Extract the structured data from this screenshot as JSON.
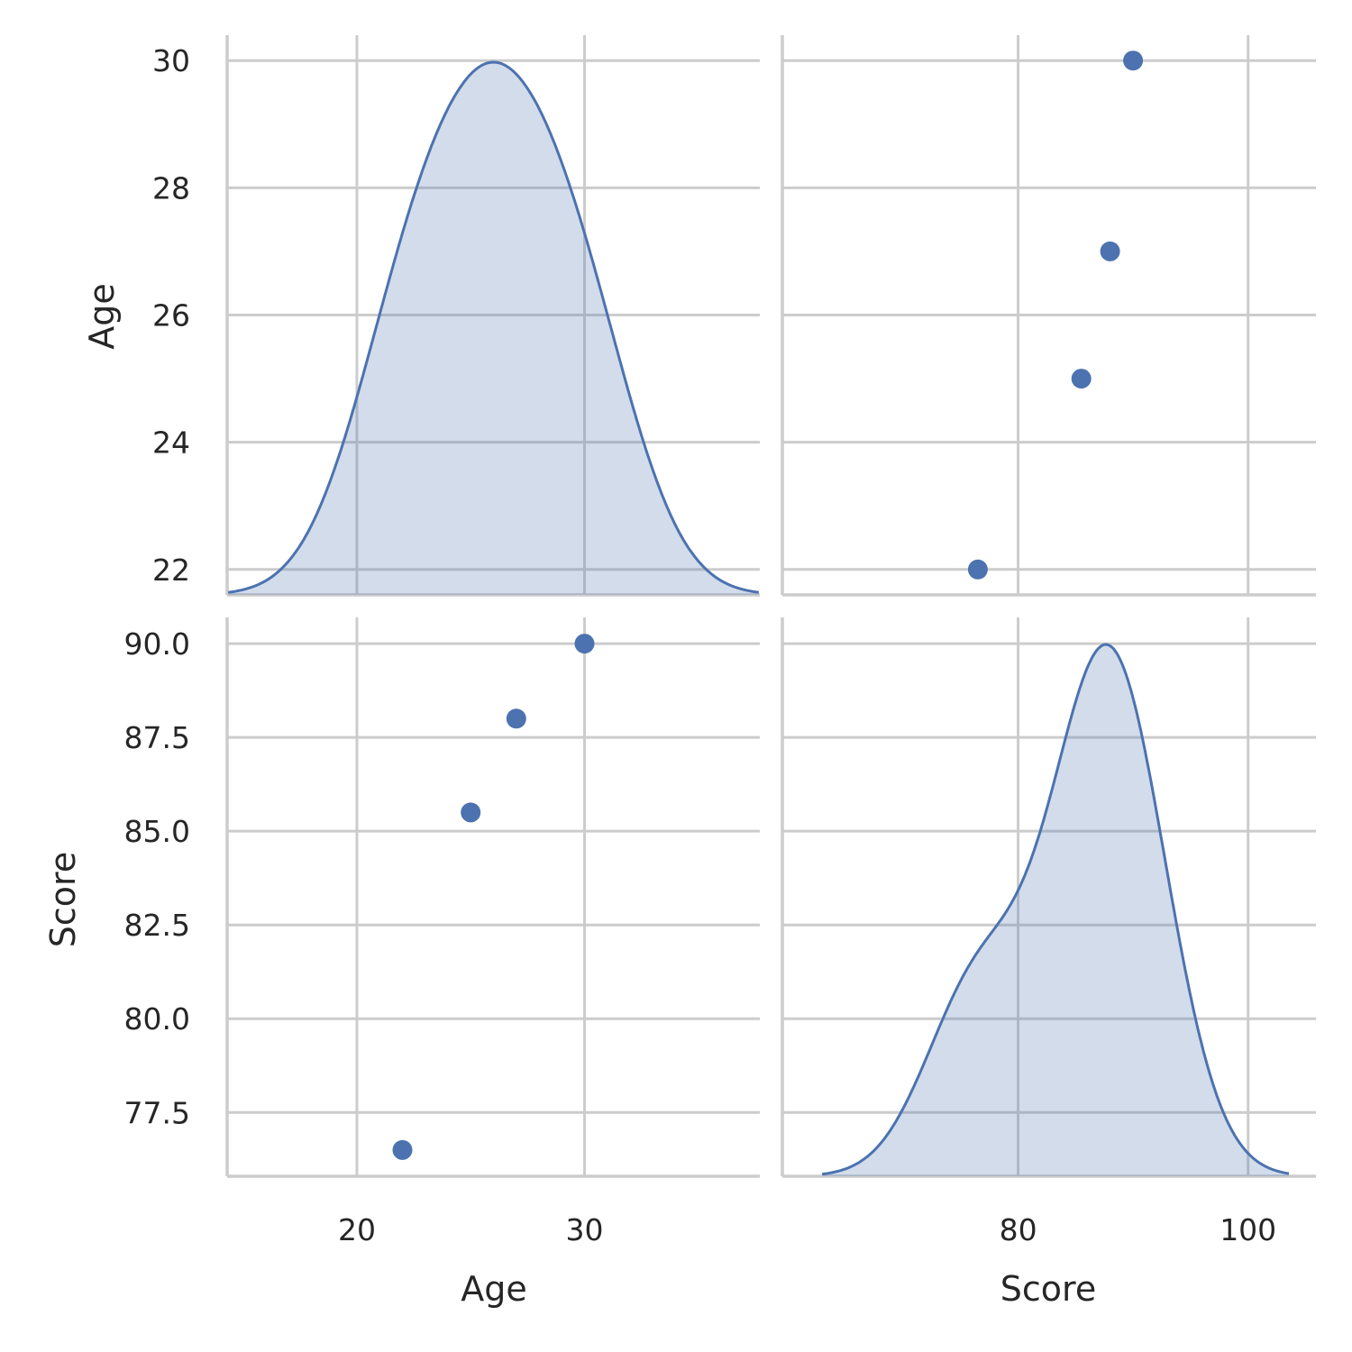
{
  "chart_data": {
    "type": "scatter",
    "subtype": "pairplot",
    "grid": true,
    "color": "#4c72b0",
    "variables": [
      "Age",
      "Score"
    ],
    "observations": [
      {
        "Age": 22,
        "Score": 76.5
      },
      {
        "Age": 25,
        "Score": 85.5
      },
      {
        "Age": 27,
        "Score": 88.0
      },
      {
        "Age": 30,
        "Score": 90.0
      }
    ],
    "axes": {
      "Age": {
        "label": "Age",
        "ticks": [
          20,
          30
        ],
        "tick_labels": [
          "20",
          "30"
        ],
        "range": [
          14.3,
          37.7
        ]
      },
      "Score": {
        "label": "Score",
        "ticks": [
          80,
          100
        ],
        "tick_labels": [
          "80",
          "100"
        ],
        "range": [
          59.5,
          105.9
        ]
      },
      "Age_row": {
        "label": "Age",
        "ticks": [
          22,
          24,
          26,
          28,
          30
        ],
        "tick_labels": [
          "22",
          "24",
          "26",
          "28",
          "30"
        ],
        "range": [
          21.6,
          30.4
        ]
      },
      "Score_row": {
        "label": "Score",
        "ticks": [
          77.5,
          80.0,
          82.5,
          85.0,
          87.5,
          90.0
        ],
        "tick_labels": [
          "77.5",
          "80.0",
          "82.5",
          "85.0",
          "87.5",
          "90.0"
        ],
        "range": [
          75.8,
          90.7
        ]
      }
    },
    "panels": [
      {
        "row": 0,
        "col": 0,
        "kind": "kde",
        "variable": "Age"
      },
      {
        "row": 0,
        "col": 1,
        "kind": "scatter",
        "x": "Score",
        "y": "Age"
      },
      {
        "row": 1,
        "col": 0,
        "kind": "scatter",
        "x": "Age",
        "y": "Score"
      },
      {
        "row": 1,
        "col": 1,
        "kind": "kde",
        "variable": "Score"
      }
    ]
  }
}
